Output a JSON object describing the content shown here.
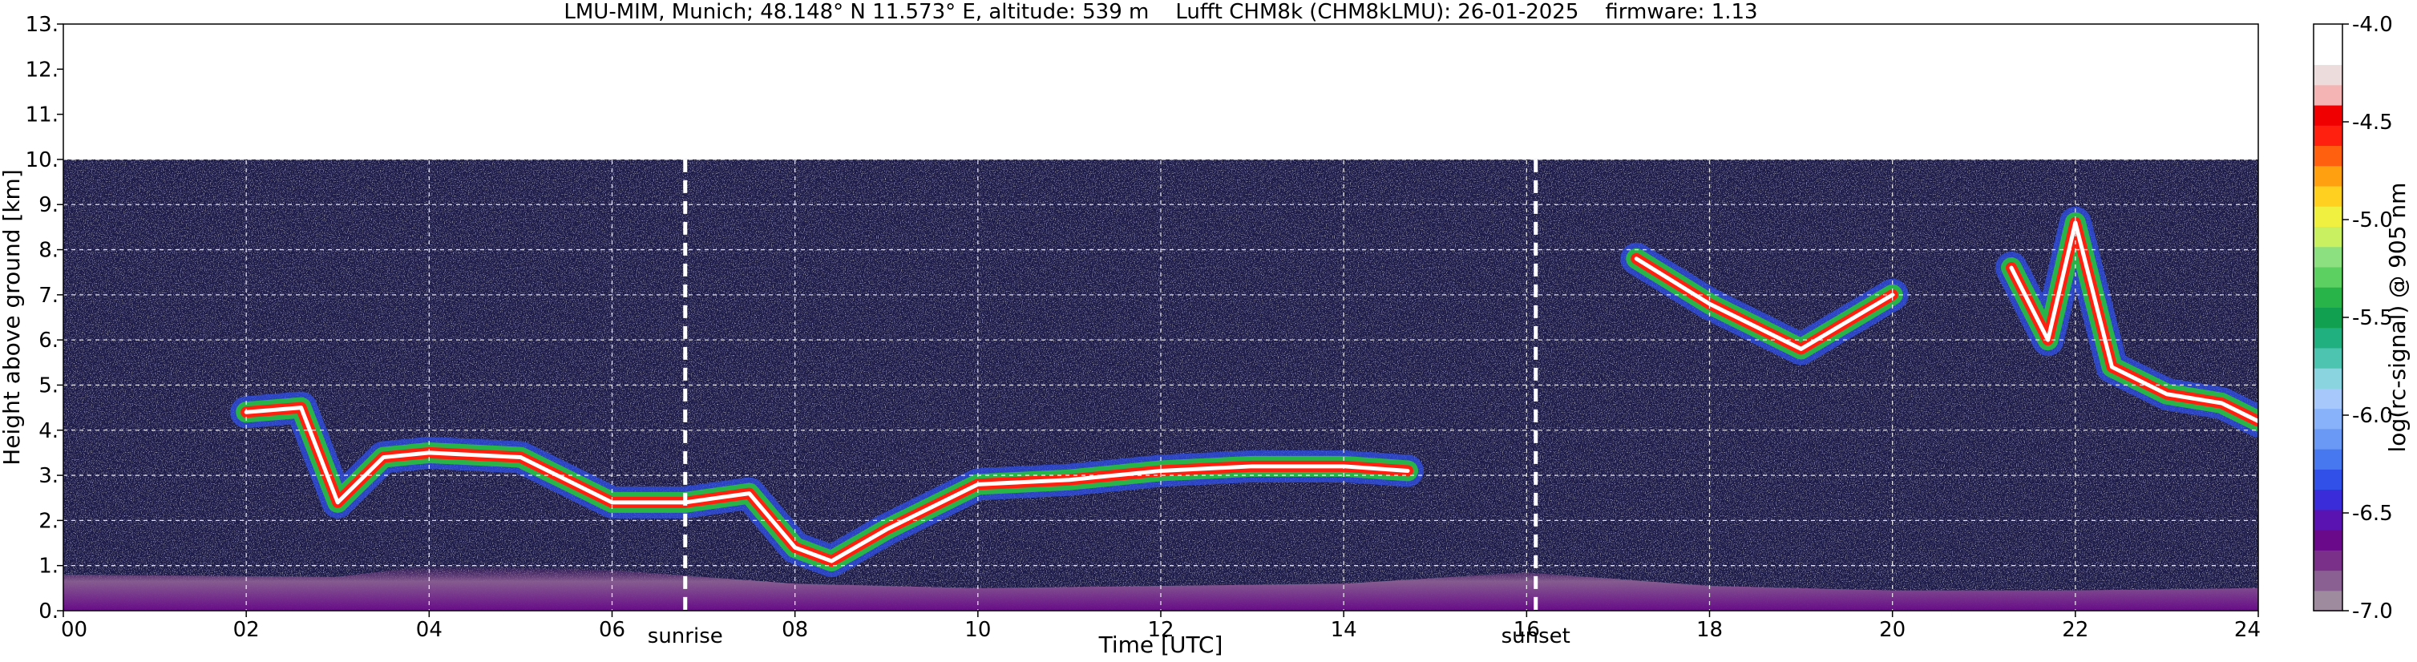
{
  "chart_data": {
    "type": "heatmap",
    "title": "LMU-MIM, Munich; 48.148° N 11.573° E, altitude: 539 m    Lufft CHM8k (CHM8kLMU): 26-01-2025    firmware: 1.13",
    "xlabel": "Time [UTC]",
    "ylabel": "Height above ground [km]",
    "xlim": [
      0,
      24
    ],
    "ylim": [
      0,
      13
    ],
    "x_ticks": [
      "00",
      "02",
      "04",
      "06",
      "08",
      "10",
      "12",
      "14",
      "16",
      "18",
      "20",
      "22",
      "24"
    ],
    "y_ticks": [
      "0.",
      "1.",
      "2.",
      "3.",
      "4.",
      "5.",
      "6.",
      "7.",
      "8.",
      "9.",
      "10.",
      "11.",
      "12.",
      "13."
    ],
    "grid": true,
    "annotations": [
      {
        "label": "sunrise",
        "x": 6.8
      },
      {
        "label": "sunset",
        "x": 16.1
      }
    ],
    "data_max_height_km": 10.0,
    "colorbar": {
      "label": "log(rc-signal) @ 905 nm",
      "range": [
        -7.0,
        -4.0
      ],
      "ticks": [
        "-7.0",
        "-6.5",
        "-6.0",
        "-5.5",
        "-5.0",
        "-4.5",
        "-4.0"
      ],
      "colors": [
        "#9e8c9e",
        "#8a5f92",
        "#7a2f88",
        "#6a0a8a",
        "#5a12b0",
        "#3a2cd8",
        "#3050e8",
        "#4878f0",
        "#6a98f5",
        "#88b2fa",
        "#a6c8fb",
        "#8ad4e0",
        "#4cc4b0",
        "#20b080",
        "#10a050",
        "#28b448",
        "#5cd060",
        "#8ce080",
        "#c8f060",
        "#f0f040",
        "#ffd020",
        "#ffa010",
        "#ff6010",
        "#ff2010",
        "#f00000",
        "#f4b4b4",
        "#ecdcdc",
        "#ffffff",
        "#ffffff"
      ]
    },
    "features": [
      {
        "name": "boundary-layer",
        "points": [
          [
            0,
            0.8
          ],
          [
            3,
            0.75
          ],
          [
            4,
            1.0
          ],
          [
            6,
            0.9
          ],
          [
            8,
            0.6
          ],
          [
            10,
            0.5
          ],
          [
            14,
            0.6
          ],
          [
            16,
            0.85
          ],
          [
            18,
            0.55
          ],
          [
            20,
            0.45
          ],
          [
            22,
            0.45
          ],
          [
            24,
            0.5
          ]
        ]
      },
      {
        "name": "cloud-layer-morning",
        "points": [
          [
            2.0,
            4.4
          ],
          [
            2.6,
            4.5
          ],
          [
            3.0,
            2.4
          ],
          [
            3.5,
            3.4
          ],
          [
            4.0,
            3.5
          ],
          [
            5.0,
            3.4
          ],
          [
            6.0,
            2.4
          ],
          [
            6.8,
            2.4
          ],
          [
            7.5,
            2.6
          ],
          [
            8.0,
            1.4
          ],
          [
            8.4,
            1.1
          ],
          [
            9.0,
            1.8
          ],
          [
            10.0,
            2.8
          ],
          [
            11.0,
            2.9
          ],
          [
            12.0,
            3.1
          ],
          [
            13.0,
            3.2
          ],
          [
            14.0,
            3.2
          ],
          [
            14.7,
            3.1
          ]
        ]
      },
      {
        "name": "cirrus-evening",
        "points": [
          [
            17.2,
            7.8
          ],
          [
            18.0,
            6.8
          ],
          [
            18.6,
            6.2
          ],
          [
            19.0,
            5.8
          ],
          [
            19.5,
            6.4
          ],
          [
            20.0,
            7.0
          ]
        ]
      },
      {
        "name": "cirrus-late",
        "points": [
          [
            21.3,
            7.6
          ],
          [
            21.7,
            6.0
          ],
          [
            22.0,
            8.6
          ],
          [
            22.4,
            5.4
          ],
          [
            23.0,
            4.8
          ],
          [
            23.6,
            4.6
          ],
          [
            24.0,
            4.2
          ]
        ]
      }
    ]
  }
}
